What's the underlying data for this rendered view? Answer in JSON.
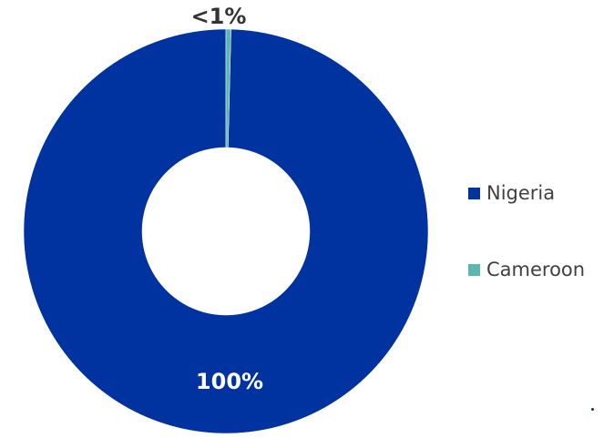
{
  "chart_data": {
    "type": "pie",
    "donut": true,
    "categories": [
      "Nigeria",
      "Cameroon"
    ],
    "values": [
      99.6,
      0.4
    ],
    "data_labels": [
      "100%",
      "<1%"
    ],
    "colors": [
      "#0033a0",
      "#5bb8b0"
    ],
    "label_colors": [
      "#ffffff",
      "#333333"
    ],
    "legend": {
      "position": "right",
      "entries": [
        "Nigeria",
        "Cameroon"
      ]
    },
    "title": ""
  }
}
